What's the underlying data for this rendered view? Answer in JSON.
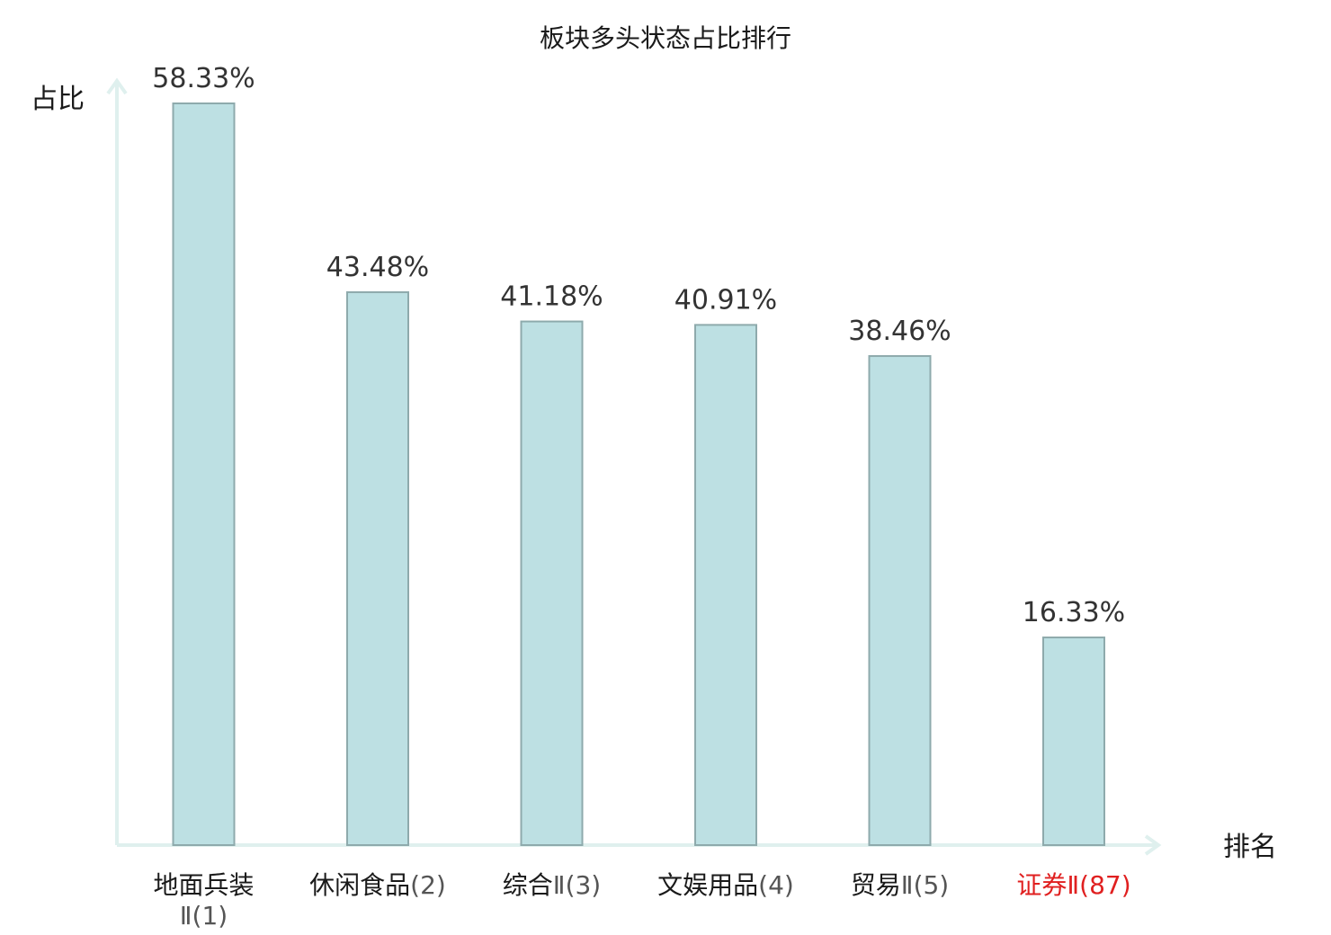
{
  "chart_data": {
    "type": "bar",
    "title": "板块多头状态占比排行",
    "ylabel": "占比",
    "xlabel": "排名",
    "ylim": [
      0,
      60
    ],
    "grid": false,
    "categories": [
      {
        "main": "地面兵装",
        "suffix": "Ⅱ(1)",
        "highlight": false
      },
      {
        "main": "休闲食品",
        "suffix": "(2)",
        "highlight": false
      },
      {
        "main": "综合",
        "suffix": "Ⅱ(3)",
        "highlight": false
      },
      {
        "main": "文娱用品",
        "suffix": "(4)",
        "highlight": false
      },
      {
        "main": "贸易",
        "suffix": "Ⅱ(5)",
        "highlight": false
      },
      {
        "main": "证券",
        "suffix": "Ⅱ(87)",
        "highlight": true
      }
    ],
    "values": [
      58.33,
      43.48,
      41.18,
      40.91,
      38.46,
      16.33
    ],
    "value_labels": [
      "58.33%",
      "43.48%",
      "41.18%",
      "40.91%",
      "38.46%",
      "16.33%"
    ],
    "colors": {
      "bar_fill": "#bde0e3",
      "bar_stroke": "#8eaaac",
      "axis": "#dff0ee",
      "highlight_text": "#e02020"
    }
  }
}
